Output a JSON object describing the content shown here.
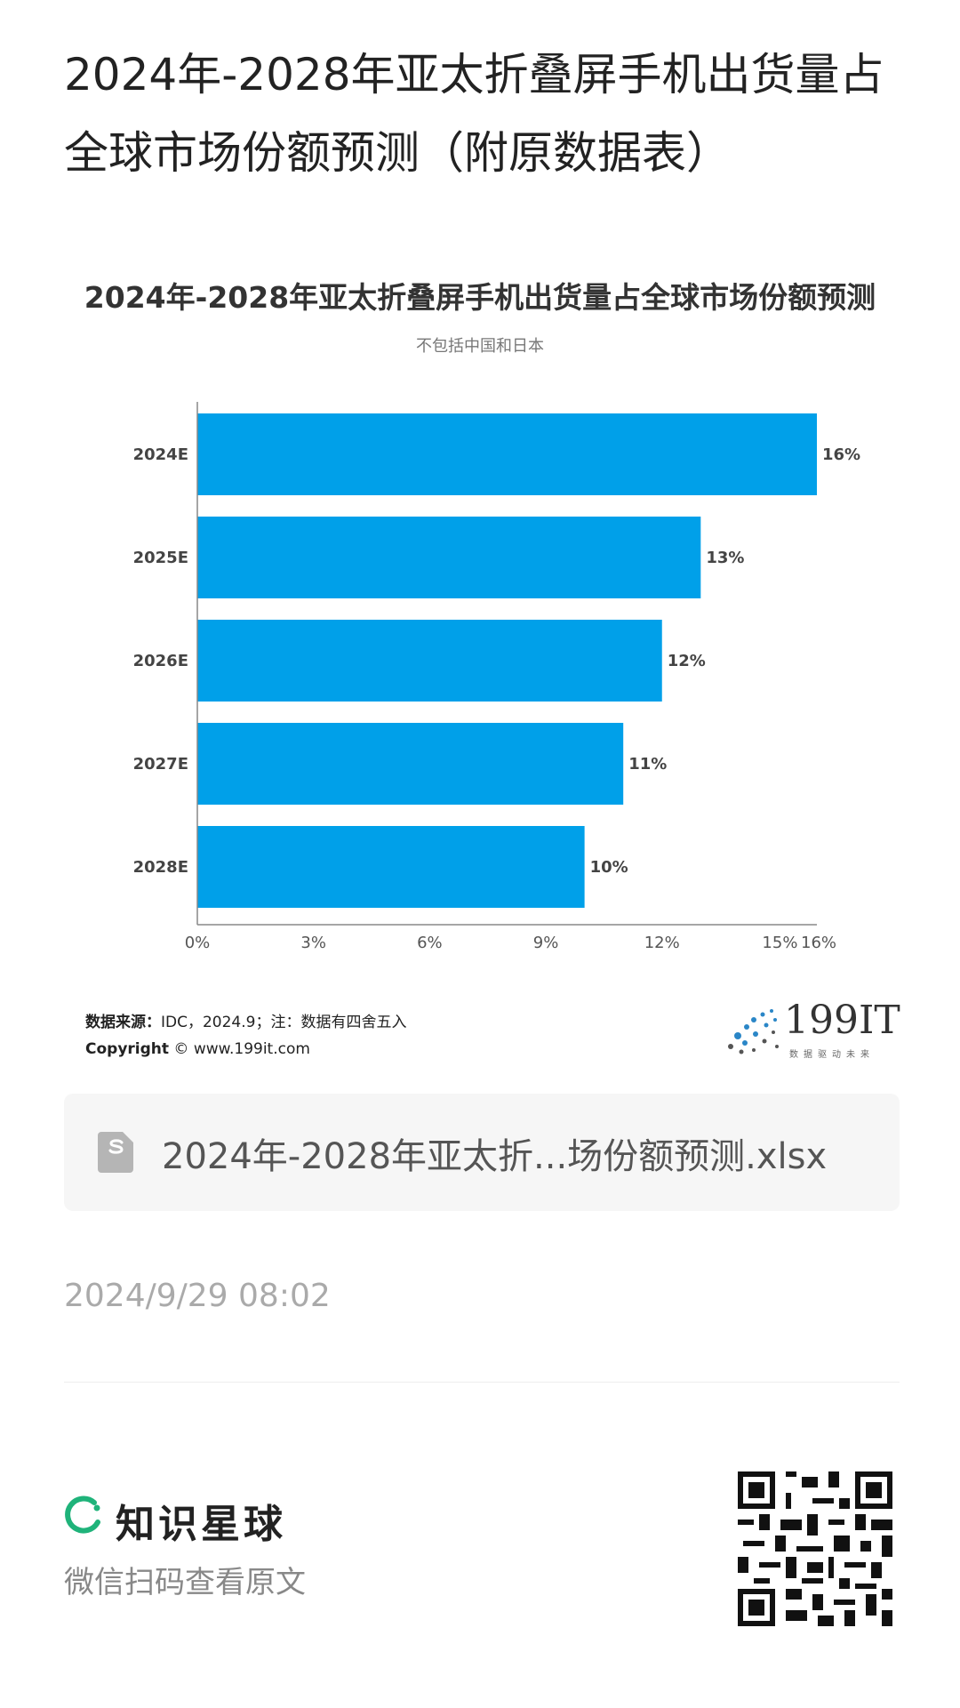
{
  "post": {
    "title_line1": "2024年-2028年亚太折叠屏手机出货量占",
    "title_line2": "全球市场份额预测（附原数据表）"
  },
  "chart_data": {
    "type": "bar",
    "orientation": "horizontal",
    "title": "2024年-2028年亚太折叠屏手机出货量占全球市场份额预测",
    "subtitle": "不包括中国和日本",
    "categories": [
      "2024E",
      "2025E",
      "2026E",
      "2027E",
      "2028E"
    ],
    "values": [
      16,
      13,
      12,
      11,
      10
    ],
    "value_labels": [
      "16%",
      "13%",
      "12%",
      "11%",
      "10%"
    ],
    "xlim": [
      0,
      16
    ],
    "x_ticks": [
      0,
      3,
      6,
      9,
      12,
      15,
      16
    ],
    "x_tick_labels": [
      "0%",
      "3%",
      "6%",
      "9%",
      "12%",
      "15%",
      "16%"
    ],
    "bar_color": "#00a0e9",
    "grid": false,
    "legend": "none"
  },
  "source": {
    "label": "数据来源：",
    "text": "IDC，2024.9；注：数据有四舍五入",
    "copyright_label": "Copyright",
    "copyright_text": "© www.199it.com"
  },
  "brand": {
    "name": "199IT",
    "slogan": "数据驱动未来"
  },
  "file": {
    "icon": "spreadsheet-file-icon",
    "name": "2024年-2028年亚太折...场份额预测.xlsx"
  },
  "timestamp": "2024/9/29 08:02",
  "footer": {
    "app_name": "知识星球",
    "scan_hint": "微信扫码查看原文",
    "logo_color": "#1fb37a"
  }
}
